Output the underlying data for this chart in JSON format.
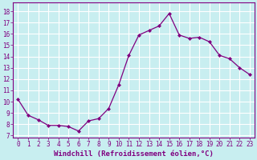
{
  "x": [
    0,
    1,
    2,
    3,
    4,
    5,
    6,
    7,
    8,
    9,
    10,
    11,
    12,
    13,
    14,
    15,
    16,
    17,
    18,
    19,
    20,
    21,
    22,
    23
  ],
  "y": [
    10.2,
    8.8,
    8.4,
    7.9,
    7.9,
    7.8,
    7.4,
    8.3,
    8.5,
    9.4,
    11.5,
    14.1,
    15.9,
    16.3,
    16.7,
    17.8,
    15.9,
    15.6,
    15.7,
    15.3,
    14.1,
    13.8,
    13.0,
    12.4
  ],
  "line_color": "#800080",
  "marker": "D",
  "marker_size": 2.0,
  "bg_color": "#c8eef0",
  "grid_color": "#ffffff",
  "xlabel": "Windchill (Refroidissement éolien,°C)",
  "xlabel_color": "#800080",
  "tick_color": "#800080",
  "yticks": [
    7,
    8,
    9,
    10,
    11,
    12,
    13,
    14,
    15,
    16,
    17,
    18
  ],
  "xticks": [
    0,
    1,
    2,
    3,
    4,
    5,
    6,
    7,
    8,
    9,
    10,
    11,
    12,
    13,
    14,
    15,
    16,
    17,
    18,
    19,
    20,
    21,
    22,
    23
  ],
  "ylim": [
    6.8,
    18.8
  ],
  "xlim": [
    -0.5,
    23.5
  ],
  "tick_fontsize": 5.5,
  "xlabel_fontsize": 6.5,
  "linewidth": 0.9
}
